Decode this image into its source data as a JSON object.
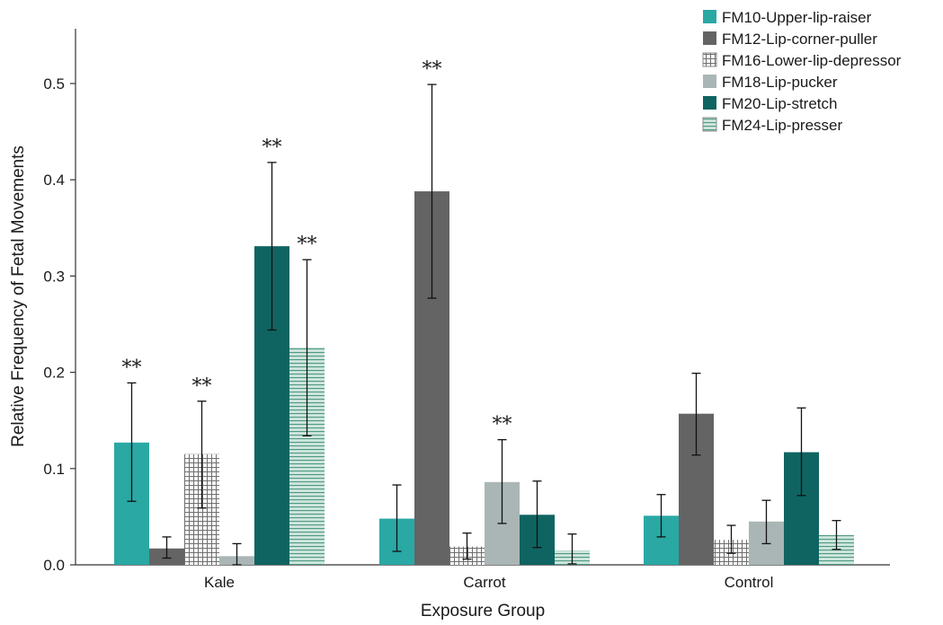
{
  "chart_data": {
    "type": "bar",
    "xlabel": "Exposure Group",
    "ylabel": "Relative Frequency of Fetal Movements",
    "ylim": [
      0,
      0.55
    ],
    "yticks": [
      0.0,
      0.1,
      0.2,
      0.3,
      0.4,
      0.5
    ],
    "ytick_labels": [
      "0.0",
      "0.1",
      "0.2",
      "0.3",
      "0.4",
      "0.5"
    ],
    "categories": [
      "Kale",
      "Carrot",
      "Control"
    ],
    "legend_position": "top-right",
    "significance_marker": "**",
    "series": [
      {
        "name": "FM10-Upper-lip-raiser",
        "color": "#2aa8a4",
        "pattern": "solid",
        "values": [
          0.127,
          0.048,
          0.051
        ],
        "err_low": [
          0.066,
          0.014,
          0.029
        ],
        "err_high": [
          0.189,
          0.083,
          0.073
        ],
        "significant": [
          true,
          false,
          false
        ]
      },
      {
        "name": "FM12-Lip-corner-puller",
        "color": "#646464",
        "pattern": "solid",
        "values": [
          0.017,
          0.388,
          0.157
        ],
        "err_low": [
          0.007,
          0.277,
          0.114
        ],
        "err_high": [
          0.029,
          0.499,
          0.199
        ],
        "significant": [
          false,
          true,
          false
        ]
      },
      {
        "name": "FM16-Lower-lip-depressor",
        "color": "#6e6e6e",
        "pattern": "grid",
        "values": [
          0.115,
          0.019,
          0.026
        ],
        "err_low": [
          0.059,
          0.006,
          0.012
        ],
        "err_high": [
          0.17,
          0.033,
          0.041
        ],
        "significant": [
          true,
          false,
          false
        ]
      },
      {
        "name": "FM18-Lip-pucker",
        "color": "#aab6b5",
        "pattern": "solid",
        "values": [
          0.009,
          0.086,
          0.045
        ],
        "err_low": [
          0.0,
          0.043,
          0.022
        ],
        "err_high": [
          0.022,
          0.13,
          0.067
        ],
        "significant": [
          false,
          true,
          false
        ]
      },
      {
        "name": "FM20-Lip-stretch",
        "color": "#0f6461",
        "pattern": "solid",
        "values": [
          0.331,
          0.052,
          0.117
        ],
        "err_low": [
          0.244,
          0.018,
          0.072
        ],
        "err_high": [
          0.418,
          0.087,
          0.163
        ],
        "significant": [
          true,
          false,
          false
        ]
      },
      {
        "name": "FM24-Lip-presser",
        "color": "#5a9e88",
        "pattern": "hlines",
        "values": [
          0.226,
          0.015,
          0.031
        ],
        "err_low": [
          0.134,
          0.001,
          0.016
        ],
        "err_high": [
          0.317,
          0.032,
          0.046
        ],
        "significant": [
          true,
          false,
          false
        ]
      }
    ]
  }
}
